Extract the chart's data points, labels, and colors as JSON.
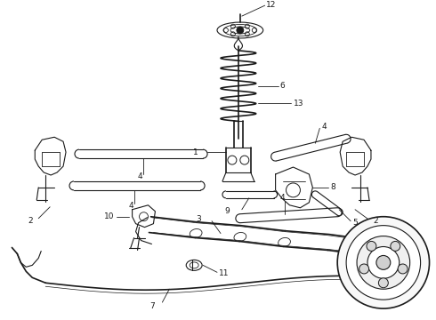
{
  "bg_color": "#ffffff",
  "line_color": "#1a1a1a",
  "label_color": "#1a1a1a",
  "figsize": [
    4.9,
    3.6
  ],
  "dpi": 100
}
